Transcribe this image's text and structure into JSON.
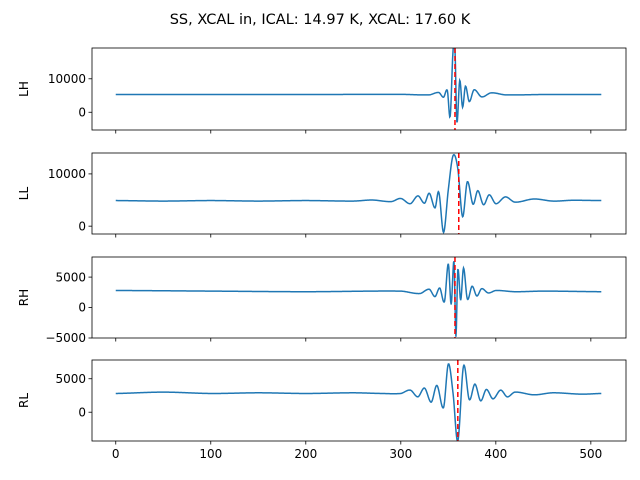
{
  "title": "SS, XCAL in, ICAL: 14.97 K, XCAL: 17.60 K",
  "colors": {
    "series": "#1f77b4",
    "marker": "#ff0000",
    "axis": "#000000"
  },
  "chart_data": [
    {
      "type": "line",
      "ylabel": "LH",
      "xlim": [
        -25,
        537
      ],
      "ylim": [
        -5300,
        19200
      ],
      "yticks": [
        0,
        10000
      ],
      "xticks": [
        0,
        100,
        200,
        300,
        400,
        500
      ],
      "show_xtick_labels": false,
      "baseline": 5300,
      "peak_x": 357,
      "marker_x": 357,
      "marker_style": "dashed",
      "series": [
        {
          "x": [
            0,
            100,
            200,
            300,
            330,
            340,
            345,
            349,
            352,
            355,
            357,
            359,
            362,
            365,
            368,
            372,
            377,
            385,
            395,
            410,
            450,
            511
          ],
          "values": [
            5300,
            5290,
            5300,
            5350,
            5200,
            5900,
            4500,
            6500,
            -1200,
            18500,
            19000,
            -3000,
            9500,
            1500,
            7800,
            3200,
            6700,
            4600,
            5800,
            5200,
            5300,
            5300
          ]
        }
      ]
    },
    {
      "type": "line",
      "ylabel": "LL",
      "xlim": [
        -25,
        537
      ],
      "ylim": [
        -1500,
        14000
      ],
      "yticks": [
        0,
        10000
      ],
      "xticks": [
        0,
        100,
        200,
        300,
        400,
        500
      ],
      "show_xtick_labels": false,
      "baseline": 4900,
      "peak_x": 355,
      "marker_x": 361,
      "marker_style": "dashed",
      "series": [
        {
          "x": [
            0,
            50,
            100,
            150,
            200,
            250,
            270,
            290,
            300,
            310,
            318,
            325,
            330,
            336,
            340,
            345,
            350,
            355,
            360,
            365,
            370,
            376,
            381,
            387,
            393,
            400,
            410,
            420,
            440,
            460,
            480,
            511
          ],
          "values": [
            4900,
            4800,
            4900,
            4800,
            4900,
            4800,
            5000,
            4700,
            5300,
            4300,
            5800,
            4400,
            6300,
            3500,
            6500,
            -1200,
            7000,
            13500,
            11000,
            1800,
            8500,
            4200,
            6800,
            4100,
            6000,
            4300,
            5600,
            4600,
            5200,
            4800,
            4950,
            4900
          ]
        }
      ]
    },
    {
      "type": "line",
      "ylabel": "RH",
      "xlim": [
        -25,
        537
      ],
      "ylim": [
        -5000,
        8300
      ],
      "yticks": [
        -5000,
        0,
        5000
      ],
      "xticks": [
        0,
        100,
        200,
        300,
        400,
        500
      ],
      "show_xtick_labels": false,
      "baseline": 2700,
      "peak_x": 357,
      "marker_x": 357,
      "marker_style": "dashed",
      "series": [
        {
          "x": [
            0,
            100,
            200,
            300,
            320,
            330,
            336,
            341,
            346,
            350,
            353,
            356,
            358,
            360,
            363,
            366,
            370,
            375,
            380,
            385,
            392,
            400,
            420,
            450,
            511
          ],
          "values": [
            2800,
            2700,
            2600,
            2700,
            2300,
            3000,
            1800,
            3200,
            1000,
            7200,
            500,
            7600,
            -4800,
            6200,
            1200,
            6500,
            1400,
            3500,
            1900,
            3100,
            2400,
            2800,
            2600,
            2700,
            2600
          ]
        }
      ]
    },
    {
      "type": "line",
      "ylabel": "RL",
      "xlim": [
        -25,
        537
      ],
      "ylim": [
        -4300,
        7800
      ],
      "yticks": [
        0,
        5000
      ],
      "xticks": [
        0,
        100,
        200,
        300,
        400,
        500
      ],
      "show_xtick_labels": true,
      "baseline": 2800,
      "peak_x": 360,
      "marker_x": 360,
      "marker_style": "dashed",
      "series": [
        {
          "x": [
            0,
            50,
            100,
            150,
            200,
            250,
            280,
            300,
            310,
            318,
            325,
            332,
            338,
            345,
            350,
            355,
            360,
            366,
            372,
            378,
            384,
            390,
            397,
            405,
            412,
            420,
            440,
            460,
            490,
            511
          ],
          "values": [
            2800,
            3000,
            2800,
            2900,
            2800,
            2900,
            2800,
            2800,
            3300,
            2300,
            3600,
            1500,
            4000,
            700,
            7200,
            2800,
            -4300,
            6900,
            1900,
            4200,
            1700,
            3400,
            2000,
            3300,
            2300,
            3000,
            2600,
            2900,
            2700,
            2800
          ]
        }
      ]
    }
  ]
}
